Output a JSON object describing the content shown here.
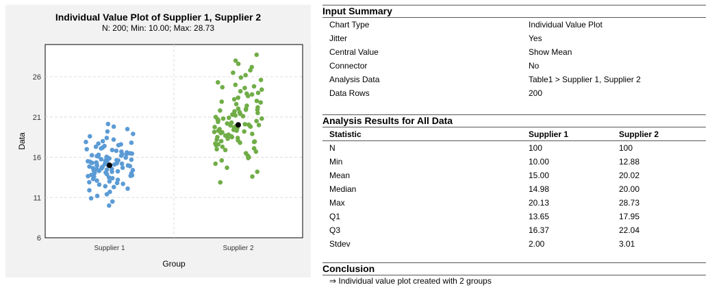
{
  "colors": {
    "supplier1": "#5b9bd5",
    "supplier2": "#70ad47",
    "mean": "#000000",
    "panel": "#f2f2f2"
  },
  "chart_data": {
    "type": "scatter",
    "title": "Individual Value Plot of Supplier 1, Supplier 2",
    "subtitle": "N: 200; Min: 10.00; Max: 28.73",
    "xlabel": "Group",
    "ylabel": "Data",
    "categories": [
      "Supplier 1",
      "Supplier 2"
    ],
    "ylim": [
      6,
      30
    ],
    "yticks": [
      6,
      11,
      16,
      21,
      26
    ],
    "grid": true,
    "jitter": true,
    "series": [
      {
        "category": "Supplier 1",
        "mean": 15.0,
        "values": [
          10.0,
          10.5,
          10.9,
          11.2,
          11.4,
          11.7,
          11.9,
          12.1,
          12.3,
          12.4,
          12.6,
          12.7,
          12.8,
          12.9,
          13.0,
          13.1,
          13.2,
          13.3,
          13.4,
          13.5,
          13.6,
          13.65,
          13.7,
          13.75,
          13.8,
          13.9,
          14.0,
          14.05,
          14.1,
          14.2,
          14.25,
          14.3,
          14.35,
          14.4,
          14.45,
          14.5,
          14.55,
          14.6,
          14.65,
          14.7,
          14.75,
          14.8,
          14.85,
          14.9,
          14.95,
          14.98,
          15.0,
          15.05,
          15.1,
          15.15,
          15.2,
          15.25,
          15.3,
          15.35,
          15.4,
          15.45,
          15.5,
          15.55,
          15.6,
          15.65,
          15.7,
          15.75,
          15.8,
          15.85,
          15.9,
          15.95,
          16.0,
          16.05,
          16.1,
          16.15,
          16.2,
          16.25,
          16.3,
          16.37,
          16.4,
          16.45,
          16.5,
          16.6,
          16.7,
          16.8,
          16.9,
          17.0,
          17.1,
          17.2,
          17.3,
          17.4,
          17.5,
          17.6,
          17.7,
          17.8,
          17.9,
          18.0,
          18.2,
          18.4,
          18.6,
          18.9,
          19.2,
          19.5,
          19.8,
          20.13
        ]
      },
      {
        "category": "Supplier 2",
        "mean": 20.02,
        "values": [
          12.88,
          13.6,
          14.2,
          14.7,
          15.2,
          15.6,
          15.9,
          16.2,
          16.5,
          16.7,
          16.9,
          17.1,
          17.3,
          17.5,
          17.6,
          17.7,
          17.8,
          17.9,
          17.95,
          18.0,
          18.1,
          18.2,
          18.3,
          18.4,
          18.5,
          18.6,
          18.7,
          18.8,
          18.9,
          19.0,
          19.1,
          19.15,
          19.2,
          19.3,
          19.4,
          19.5,
          19.6,
          19.7,
          19.75,
          19.8,
          19.85,
          19.9,
          19.95,
          20.0,
          20.05,
          20.1,
          20.2,
          20.3,
          20.4,
          20.5,
          20.6,
          20.7,
          20.8,
          20.9,
          21.0,
          21.1,
          21.2,
          21.3,
          21.4,
          21.5,
          21.6,
          21.7,
          21.8,
          21.9,
          22.0,
          22.04,
          22.2,
          22.4,
          22.6,
          22.8,
          23.0,
          23.2,
          23.4,
          23.6,
          23.8,
          24.0,
          24.2,
          24.4,
          24.6,
          24.8,
          25.0,
          25.3,
          25.6,
          25.9,
          26.2,
          26.5,
          26.8,
          27.2,
          27.6,
          28.0,
          28.73,
          16.0,
          17.0,
          18.5,
          19.3,
          20.8,
          21.9,
          22.9,
          23.9,
          24.7
        ]
      }
    ]
  },
  "input_summary": {
    "header": "Input Summary",
    "rows": [
      {
        "label": "Chart Type",
        "value": "Individual Value Plot"
      },
      {
        "label": "Jitter",
        "value": "Yes"
      },
      {
        "label": "Central Value",
        "value": "Show Mean"
      },
      {
        "label": "Connector",
        "value": "No"
      },
      {
        "label": "Analysis Data",
        "value": "Table1 > Supplier 1, Supplier 2"
      },
      {
        "label": "Data Rows",
        "value": "200"
      }
    ]
  },
  "results": {
    "header": "Analysis Results for All Data",
    "columns": [
      "Statistic",
      "Supplier 1",
      "Supplier 2"
    ],
    "rows": [
      [
        "N",
        "100",
        "100"
      ],
      [
        "Min",
        "10.00",
        "12.88"
      ],
      [
        "Mean",
        "15.00",
        "20.02"
      ],
      [
        "Median",
        "14.98",
        "20.00"
      ],
      [
        "Max",
        "20.13",
        "28.73"
      ],
      [
        "Q1",
        "13.65",
        "17.95"
      ],
      [
        "Q3",
        "16.37",
        "22.04"
      ],
      [
        "Stdev",
        "2.00",
        "3.01"
      ]
    ]
  },
  "conclusion": {
    "header": "Conclusion",
    "text": "⇒ Individual value plot created with 2 groups"
  }
}
